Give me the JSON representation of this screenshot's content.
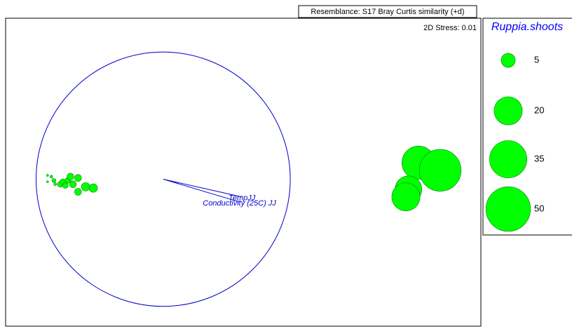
{
  "chart_data": {
    "type": "bubble",
    "title": "Resemblance: S17 Bray Curtis similarity (+d)",
    "annotation": "2D Stress: 0.01",
    "color": "#00ff00",
    "vector_color": "#0000cc",
    "x": [
      -0.91,
      -0.91,
      -0.88,
      -0.86,
      -0.85,
      -0.81,
      -0.79,
      -0.77,
      -0.75,
      -0.73,
      -0.71,
      -0.67,
      -0.67,
      -0.61,
      -0.55,
      2.01,
      2.18,
      1.93,
      1.91
    ],
    "y": [
      0.03,
      -0.02,
      0.02,
      -0.01,
      -0.04,
      -0.04,
      -0.02,
      -0.05,
      -0.01,
      0.02,
      -0.04,
      0.01,
      -0.1,
      -0.06,
      -0.07,
      0.13,
      0.07,
      -0.08,
      -0.14
    ],
    "sizes": [
      0.1,
      0.1,
      0.2,
      0.4,
      0.2,
      0.8,
      0.8,
      0.8,
      0.8,
      1.2,
      1.2,
      1.2,
      1.2,
      1.8,
      1.8,
      28,
      44,
      18,
      20
    ],
    "xlim": [
      -1.24,
      2.5
    ],
    "ylim": [
      -1.16,
      1.27
    ],
    "size_legend": {
      "title": "Ruppia.shoots",
      "values": [
        5,
        20,
        35,
        50
      ]
    },
    "vectors": [
      {
        "name": "TempJJ",
        "x": 0.62,
        "y": -0.14
      },
      {
        "name": "Conductivity (25C) JJ",
        "x": 0.6,
        "y": -0.18
      }
    ]
  }
}
